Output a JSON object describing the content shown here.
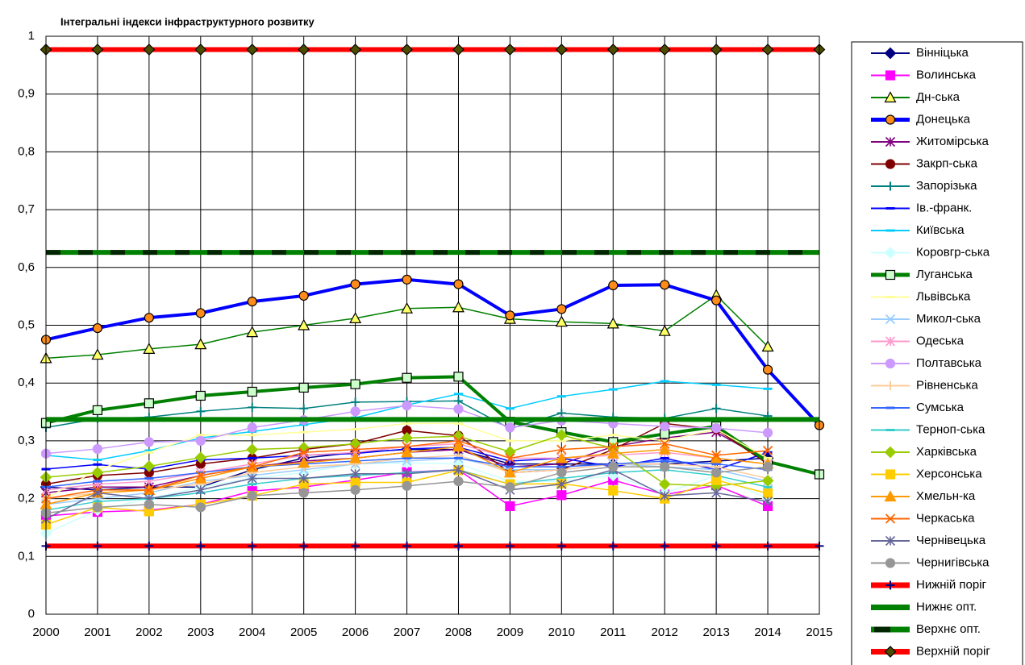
{
  "chart_data": {
    "type": "line",
    "title": "Інтегральні індекси інфраструктурного розвитку",
    "categories": [
      "2000",
      "2001",
      "2002",
      "2003",
      "2004",
      "2005",
      "2006",
      "2007",
      "2008",
      "2009",
      "2010",
      "2011",
      "2012",
      "2013",
      "2014",
      "2015"
    ],
    "ylim": [
      0,
      1
    ],
    "yticks": [
      0,
      {
        "value": 0.1,
        "label": "0,1"
      },
      {
        "value": 0.2,
        "label": "0,2"
      },
      {
        "value": 0.3,
        "label": "0,3"
      },
      {
        "value": 0.4,
        "label": "0,4"
      },
      {
        "value": 0.5,
        "label": "0,5"
      },
      {
        "value": 0.6,
        "label": "0,6"
      },
      {
        "value": 0.7,
        "label": "0,7"
      },
      {
        "value": 0.8,
        "label": "0,8"
      },
      {
        "value": 0.9,
        "label": "0,9"
      },
      1
    ],
    "grid": true,
    "legend": "right",
    "series": [
      {
        "name": "Вінніцька",
        "color": "#000080",
        "marker": "diamond",
        "values": [
          0.22,
          0.215,
          0.22,
          0.22,
          0.25,
          0.27,
          0.28,
          0.285,
          0.285,
          0.26,
          0.26,
          0.26,
          0.26,
          0.265,
          0.27,
          null
        ]
      },
      {
        "name": "Волинська",
        "color": "#ff00ff",
        "marker": "square",
        "values": [
          0.17,
          0.177,
          0.18,
          0.19,
          0.213,
          0.22,
          0.232,
          0.246,
          0.25,
          0.187,
          0.206,
          0.232,
          0.207,
          0.223,
          0.187,
          null
        ]
      },
      {
        "name": "Дн-ська",
        "color": "#008000",
        "marker": "triangle",
        "marker_fill": "#ffff66",
        "marker_edge": "#000000",
        "values": [
          0.443,
          0.449,
          0.459,
          0.467,
          0.488,
          0.5,
          0.512,
          0.529,
          0.531,
          0.511,
          0.506,
          0.503,
          0.49,
          0.552,
          0.463,
          null
        ]
      },
      {
        "name": "Донецька",
        "color": "#0000ff",
        "width": 4,
        "marker": "circle",
        "marker_fill": "#ff8c1a",
        "marker_edge": "#000000",
        "values": [
          0.475,
          0.495,
          0.513,
          0.521,
          0.541,
          0.551,
          0.571,
          0.579,
          0.571,
          0.517,
          0.528,
          0.569,
          0.57,
          0.543,
          0.423,
          0.327
        ]
      },
      {
        "name": "Житомірська",
        "color": "#800080",
        "marker": "star",
        "values": [
          0.21,
          0.22,
          0.22,
          0.24,
          0.255,
          0.265,
          0.27,
          0.28,
          0.285,
          0.255,
          0.26,
          0.29,
          0.305,
          0.315,
          0.265,
          null
        ]
      },
      {
        "name": "Закрп-ська",
        "color": "#800000",
        "marker": "circle",
        "values": [
          0.225,
          0.24,
          0.245,
          0.26,
          0.27,
          0.285,
          0.295,
          0.318,
          0.309,
          0.245,
          0.25,
          0.285,
          0.33,
          0.32,
          0.26,
          null
        ]
      },
      {
        "name": "Запорізька",
        "color": "#008080",
        "marker": "plus",
        "values": [
          0.323,
          0.338,
          0.341,
          0.351,
          0.358,
          0.356,
          0.367,
          0.368,
          0.369,
          0.321,
          0.348,
          0.341,
          0.339,
          0.356,
          0.343,
          null
        ]
      },
      {
        "name": "Ів.-франк.",
        "color": "#0000ff",
        "marker": "dash",
        "values": [
          0.251,
          0.259,
          0.251,
          0.267,
          0.27,
          0.275,
          0.278,
          0.286,
          0.289,
          0.265,
          0.27,
          0.255,
          0.27,
          0.25,
          0.28,
          null
        ]
      },
      {
        "name": "Київська",
        "color": "#00ccff",
        "marker": "dash",
        "values": [
          0.275,
          0.267,
          0.283,
          0.305,
          0.316,
          0.328,
          0.34,
          0.362,
          0.381,
          0.356,
          0.377,
          0.389,
          0.403,
          0.397,
          0.39,
          null
        ]
      },
      {
        "name": "Коровгр-ська",
        "color": "#ccffff",
        "marker": "diamond",
        "values": [
          0.14,
          0.18,
          0.2,
          0.22,
          0.235,
          0.245,
          0.26,
          0.262,
          0.26,
          0.23,
          0.23,
          0.24,
          0.21,
          0.24,
          0.2,
          null
        ]
      },
      {
        "name": "Луганська",
        "color": "#008000",
        "width": 4,
        "marker": "square",
        "marker_fill": "#ccffcc",
        "marker_edge": "#000000",
        "values": [
          0.331,
          0.353,
          0.365,
          0.378,
          0.385,
          0.392,
          0.398,
          0.409,
          0.411,
          0.333,
          0.315,
          0.298,
          0.312,
          0.325,
          0.264,
          0.242
        ]
      },
      {
        "name": "Львівська",
        "color": "#ffff99",
        "marker": "dash",
        "values": [
          0.2,
          0.25,
          0.28,
          0.31,
          0.31,
          0.315,
          0.32,
          0.33,
          0.33,
          0.3,
          0.3,
          0.31,
          0.3,
          0.32,
          0.27,
          null
        ]
      },
      {
        "name": "Микол-ська",
        "color": "#99ccff",
        "marker": "x",
        "values": [
          0.19,
          0.2,
          0.21,
          0.23,
          0.24,
          0.25,
          0.26,
          0.265,
          0.27,
          0.25,
          0.25,
          0.26,
          0.255,
          0.25,
          0.23,
          null
        ]
      },
      {
        "name": "Одеська",
        "color": "#ff99cc",
        "marker": "star",
        "values": [
          0.215,
          0.225,
          0.23,
          0.245,
          0.26,
          0.275,
          0.28,
          0.29,
          0.295,
          0.27,
          0.27,
          0.275,
          0.28,
          0.27,
          0.26,
          null
        ]
      },
      {
        "name": "Полтавська",
        "color": "#cc99ff",
        "marker": "circle",
        "values": [
          0.278,
          0.286,
          0.298,
          0.3,
          0.323,
          0.336,
          0.351,
          0.361,
          0.355,
          0.323,
          0.335,
          0.33,
          0.325,
          0.322,
          0.314,
          null
        ]
      },
      {
        "name": "Рівненська",
        "color": "#ffcc99",
        "marker": "plus",
        "values": [
          0.2,
          0.21,
          0.215,
          0.225,
          0.245,
          0.255,
          0.26,
          0.27,
          0.275,
          0.245,
          0.25,
          0.26,
          0.26,
          0.255,
          0.235,
          null
        ]
      },
      {
        "name": "Сумська",
        "color": "#3366ff",
        "marker": "dash",
        "values": [
          0.22,
          0.23,
          0.235,
          0.245,
          0.255,
          0.26,
          0.265,
          0.27,
          0.27,
          0.255,
          0.255,
          0.26,
          0.265,
          0.26,
          0.25,
          null
        ]
      },
      {
        "name": "Терноп-ська",
        "color": "#33cccc",
        "marker": "dash",
        "values": [
          0.18,
          0.195,
          0.2,
          0.21,
          0.225,
          0.235,
          0.24,
          0.245,
          0.25,
          0.225,
          0.235,
          0.245,
          0.25,
          0.24,
          0.22,
          null
        ]
      },
      {
        "name": "Харківська",
        "color": "#99cc00",
        "marker": "diamond",
        "values": [
          0.237,
          0.245,
          0.256,
          0.271,
          0.285,
          0.288,
          0.295,
          0.305,
          0.308,
          0.281,
          0.31,
          0.287,
          0.225,
          0.222,
          0.231,
          null
        ]
      },
      {
        "name": "Херсонська",
        "color": "#ffcc00",
        "marker": "square",
        "values": [
          0.155,
          0.185,
          0.178,
          0.19,
          0.205,
          0.225,
          0.228,
          0.228,
          0.249,
          0.225,
          0.226,
          0.214,
          0.2,
          0.232,
          0.209,
          null
        ]
      },
      {
        "name": "Хмельн-ка",
        "color": "#ff9900",
        "marker": "triangle",
        "values": [
          0.19,
          0.21,
          0.215,
          0.235,
          0.255,
          0.262,
          0.27,
          0.28,
          0.29,
          0.245,
          0.27,
          0.278,
          0.285,
          0.27,
          0.26,
          null
        ]
      },
      {
        "name": "Черкаська",
        "color": "#ff6600",
        "marker": "x",
        "values": [
          0.2,
          0.215,
          0.215,
          0.24,
          0.255,
          0.28,
          0.285,
          0.29,
          0.3,
          0.27,
          0.285,
          0.29,
          0.295,
          0.275,
          0.283,
          null
        ]
      },
      {
        "name": "Чернівецька",
        "color": "#666699",
        "marker": "star",
        "values": [
          0.165,
          0.21,
          0.2,
          0.215,
          0.235,
          0.235,
          0.243,
          0.243,
          0.25,
          0.215,
          0.225,
          0.25,
          0.205,
          0.21,
          0.195,
          null
        ]
      },
      {
        "name": "Чернигівська",
        "color": "#969696",
        "marker": "circle",
        "values": [
          0.175,
          0.185,
          0.19,
          0.185,
          0.205,
          0.21,
          0.215,
          0.222,
          0.23,
          0.22,
          0.245,
          0.255,
          0.255,
          0.245,
          0.255,
          null
        ]
      },
      {
        "name": "Нижній поріг",
        "color": "#ff0000",
        "width": 6,
        "marker": "plus",
        "marker_edge": "#000080",
        "values": [
          0.118,
          0.118,
          0.118,
          0.118,
          0.118,
          0.118,
          0.118,
          0.118,
          0.118,
          0.118,
          0.118,
          0.118,
          0.118,
          0.118,
          0.118,
          0.118
        ]
      },
      {
        "name": "Нижнє опт.",
        "color": "#008000",
        "width": 6,
        "values": [
          0.337,
          0.337,
          0.337,
          0.337,
          0.337,
          0.337,
          0.337,
          0.337,
          0.337,
          0.337,
          0.337,
          0.337,
          0.337,
          0.337,
          0.337,
          0.337
        ]
      },
      {
        "name": "Верхнє опт.",
        "color": "#008000",
        "width": 6,
        "line_style": "dashed",
        "values": [
          0.626,
          0.626,
          0.626,
          0.626,
          0.626,
          0.626,
          0.626,
          0.626,
          0.626,
          0.626,
          0.626,
          0.626,
          0.626,
          0.626,
          0.626,
          0.626
        ]
      },
      {
        "name": "Верхній поріг",
        "color": "#ff0000",
        "width": 6,
        "marker": "diamond",
        "marker_fill": "#4d4d00",
        "marker_edge": "#000000",
        "values": [
          0.977,
          0.977,
          0.977,
          0.977,
          0.977,
          0.977,
          0.977,
          0.977,
          0.977,
          0.977,
          0.977,
          0.977,
          0.977,
          0.977,
          0.977,
          0.977
        ]
      }
    ]
  }
}
